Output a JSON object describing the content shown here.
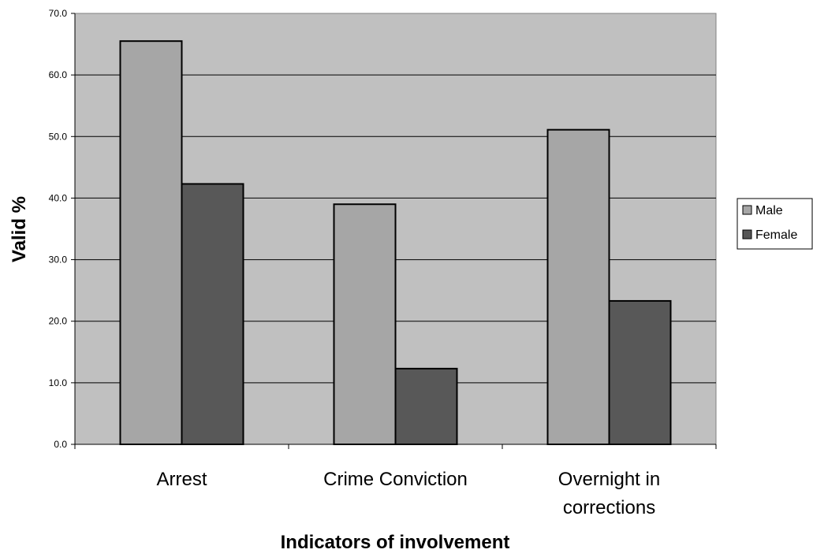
{
  "chart_data": {
    "type": "bar",
    "categories": [
      "Arrest",
      "Crime Conviction",
      "Overnight in corrections"
    ],
    "category_lines": [
      [
        "Arrest"
      ],
      [
        "Crime Conviction"
      ],
      [
        "Overnight in",
        "corrections"
      ]
    ],
    "series": [
      {
        "name": "Male",
        "values": [
          65.5,
          39.0,
          51.1
        ],
        "color": "#a6a6a6"
      },
      {
        "name": "Female",
        "values": [
          42.3,
          12.3,
          23.3
        ],
        "color": "#585858"
      }
    ],
    "xlabel": "Indicators of involvement",
    "ylabel": "Valid %",
    "ylim": [
      0,
      70
    ],
    "yticks": [
      "0.0",
      "10.0",
      "20.0",
      "30.0",
      "40.0",
      "50.0",
      "60.0",
      "70.0"
    ],
    "grid": true,
    "legend": "right",
    "plot_background": "#c0c0c0"
  }
}
